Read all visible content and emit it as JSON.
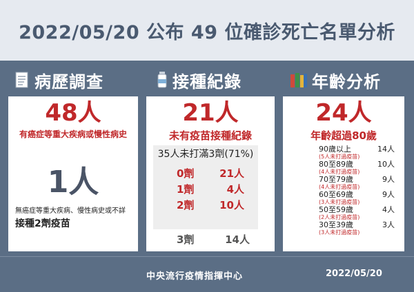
{
  "header": {
    "title": "2022/05/20 公布 49 位確診死亡名單分析"
  },
  "sections": {
    "history": {
      "heading": "病歷調查",
      "icon": "document-icon",
      "main_count": "48人",
      "main_desc": "有癌症等重大疾病或慢性病史",
      "second_count": "1人",
      "second_desc_1": "無癌症等重大疾病、慢性病史或不詳",
      "second_desc_2": "接種2劑疫苗"
    },
    "vaccination": {
      "heading": "接種紀錄",
      "icon": "vaccine-vial-icon",
      "main_count": "21人",
      "main_desc": "未有疫苗接種紀錄",
      "sub_summary": "35人未打滿3劑(71%)",
      "doses": [
        {
          "dose": "0劑",
          "count": "21人"
        },
        {
          "dose": "1劑",
          "count": "4人"
        },
        {
          "dose": "2劑",
          "count": "10人"
        },
        {
          "dose": "3劑",
          "count": "14人"
        }
      ]
    },
    "age": {
      "heading": "年齡分析",
      "icon": "books-icon",
      "main_count": "24人",
      "main_desc": "年齡超過80歲",
      "groups": [
        {
          "label": "90歲以上",
          "count": "14人",
          "note": "(5人未打過疫苗)"
        },
        {
          "label": "80至89歲",
          "count": "10人",
          "note": "(4人未打過疫苗)"
        },
        {
          "label": "70至79歲",
          "count": "9人",
          "note": "(4人未打過疫苗)"
        },
        {
          "label": "60至69歲",
          "count": "9人",
          "note": "(3人未打過疫苗)"
        },
        {
          "label": "50至59歲",
          "count": "4人",
          "note": "(2人未打過疫苗)"
        },
        {
          "label": "30至39歲",
          "count": "3人",
          "note": "(3人未打過疫苗)"
        }
      ]
    }
  },
  "footer": {
    "source": "中央流行疫情指揮中心",
    "date": "2022/05/20"
  },
  "colors": {
    "header_bg": "#e6eaf0",
    "page_bg": "#5b6e85",
    "accent_red": "#c0282a",
    "title_text": "#4a5a70"
  }
}
